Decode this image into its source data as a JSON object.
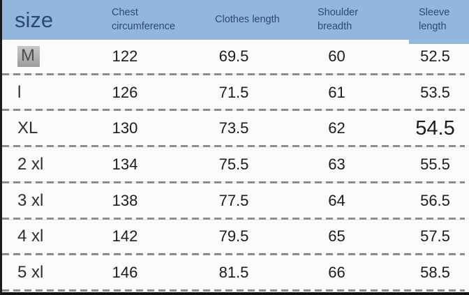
{
  "table": {
    "title_cell": "size",
    "columns": [
      "size",
      "Chest circumference",
      "Clothes length",
      "Shoulder breadth",
      "Sleeve length"
    ],
    "rows": [
      [
        "M",
        "122",
        "69.5",
        "60",
        "52.5"
      ],
      [
        "l",
        "126",
        "71.5",
        "61",
        "53.5"
      ],
      [
        "XL",
        "130",
        "73.5",
        "62",
        "54.5"
      ],
      [
        "2 xl",
        "134",
        "75.5",
        "63",
        "55.5"
      ],
      [
        "3 xl",
        "138",
        "77.5",
        "64",
        "56.5"
      ],
      [
        "4 xl",
        "142",
        "79.5",
        "65",
        "57.5"
      ],
      [
        "5 xl",
        "146",
        "81.5",
        "66",
        "58.5"
      ]
    ],
    "highlighted_size": "M",
    "emphasized_value": "54.5"
  },
  "colors": {
    "header_bg": "#93b6dd",
    "header_text": "#2b4a72",
    "body_bg": "#fbfbfa",
    "body_text": "#1c1c1c",
    "separator_dash": "#8d8d8d",
    "highlight_bg": "#b2b2b2",
    "outer_border": "#141414"
  }
}
